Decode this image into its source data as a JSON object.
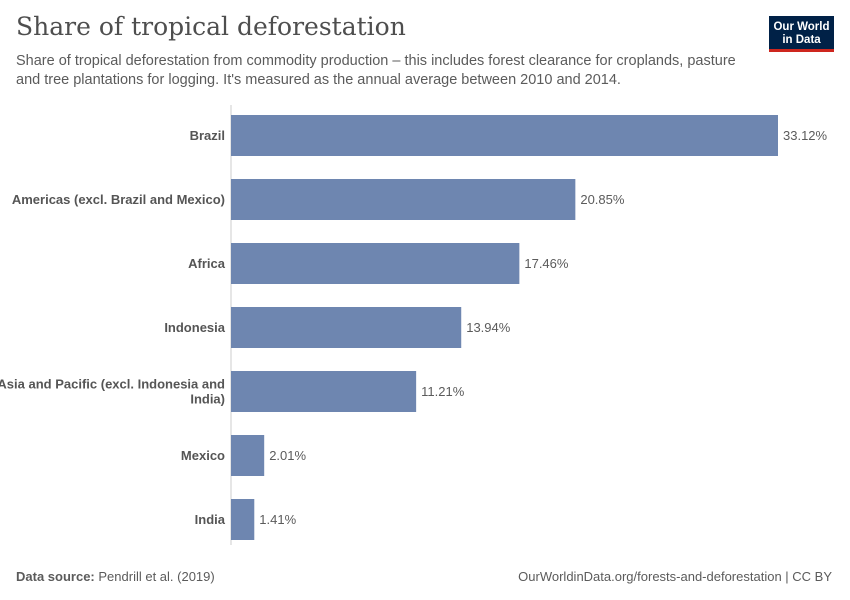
{
  "header": {
    "title": "Share of tropical deforestation",
    "subtitle": "Share of tropical deforestation from commodity production – this includes forest clearance for croplands, pasture and tree plantations for logging. It's measured as the annual average between 2010 and 2014.",
    "logo_line1": "Our World",
    "logo_line2": "in Data"
  },
  "footer": {
    "source_label": "Data source:",
    "source_value": "Pendrill et al. (2019)",
    "url": "OurWorldinData.org/forests-and-deforestation | CC BY"
  },
  "colors": {
    "bar": "#6e86b0",
    "axis": "#cccccc",
    "logo_bg": "#002147",
    "logo_accent": "#ce261e"
  },
  "chart_data": {
    "type": "bar",
    "orientation": "horizontal",
    "unit": "%",
    "categories": [
      "Brazil",
      "Americas (excl. Brazil and Mexico)",
      "Africa",
      "Indonesia",
      "Asia and Pacific (excl. Indonesia and India)",
      "Mexico",
      "India"
    ],
    "category_lines": [
      [
        "Brazil"
      ],
      [
        "Americas (excl. Brazil and Mexico)"
      ],
      [
        "Africa"
      ],
      [
        "Indonesia"
      ],
      [
        "Asia and Pacific (excl. Indonesia and",
        "India)"
      ],
      [
        "Mexico"
      ],
      [
        "India"
      ]
    ],
    "values": [
      33.12,
      20.85,
      17.46,
      13.94,
      11.21,
      2.01,
      1.41
    ],
    "value_labels": [
      "33.12%",
      "20.85%",
      "17.46%",
      "13.94%",
      "11.21%",
      "2.01%",
      "1.41%"
    ],
    "xlim": [
      0,
      33.12
    ]
  }
}
